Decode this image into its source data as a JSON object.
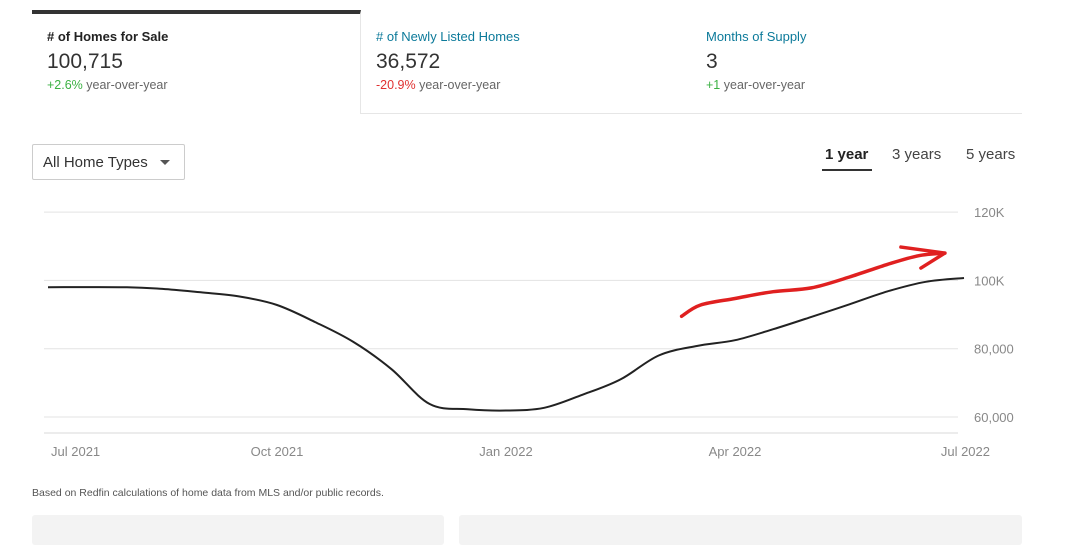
{
  "metrics": [
    {
      "title": "# of Homes for Sale",
      "value": "100,715",
      "change": "+2.6%",
      "change_text": " year-over-year"
    },
    {
      "title": "# of Newly Listed Homes",
      "value": "36,572",
      "change": "-20.9%",
      "change_text": " year-over-year"
    },
    {
      "title": "Months of Supply",
      "value": "3",
      "change": "+1",
      "change_text": " year-over-year"
    }
  ],
  "colors": {
    "up": "#3bb143",
    "down": "#e03131",
    "link": "#0c7a9a",
    "annotation": "#e02020"
  },
  "filter": {
    "selected": "All Home Types"
  },
  "ranges": [
    {
      "label": "1 year",
      "selected": true
    },
    {
      "label": "3 years",
      "selected": false
    },
    {
      "label": "5 years",
      "selected": false
    }
  ],
  "chart_data": {
    "type": "line",
    "title": "",
    "xlabel": "",
    "ylabel": "",
    "x_ticks": [
      "Jul 2021",
      "Oct 2021",
      "Jan 2022",
      "Apr 2022",
      "Jul 2022"
    ],
    "x_tick_positions": [
      0,
      3,
      6,
      9,
      12
    ],
    "y_ticks": [
      60000,
      80000,
      100000,
      120000
    ],
    "y_tick_labels": [
      "60,000",
      "80,000",
      "100K",
      "120K"
    ],
    "ylim": [
      48000,
      125000
    ],
    "xlim": [
      0,
      12
    ],
    "grid": true,
    "series": [
      {
        "color": "#222222",
        "points": [
          [
            0,
            98000
          ],
          [
            1,
            98000
          ],
          [
            1.5,
            97500
          ],
          [
            2,
            96500
          ],
          [
            2.5,
            95300
          ],
          [
            3,
            92800
          ],
          [
            3.5,
            87800
          ],
          [
            4,
            82000
          ],
          [
            4.5,
            74000
          ],
          [
            5,
            63800
          ],
          [
            5.5,
            62300
          ],
          [
            6,
            61900
          ],
          [
            6.5,
            62700
          ],
          [
            7,
            66500
          ],
          [
            7.5,
            71000
          ],
          [
            8,
            78000
          ],
          [
            8.5,
            80800
          ],
          [
            9,
            82500
          ],
          [
            9.5,
            85700
          ],
          [
            10,
            89300
          ],
          [
            10.5,
            93000
          ],
          [
            11,
            96800
          ],
          [
            11.5,
            99600
          ],
          [
            12,
            100700
          ]
        ]
      }
    ],
    "annotation": {
      "type": "arrow",
      "color": "#e02020",
      "points": [
        [
          8.3,
          89500
        ],
        [
          8.55,
          92800
        ],
        [
          9,
          94700
        ],
        [
          9.5,
          96700
        ],
        [
          10,
          97800
        ],
        [
          10.5,
          101000
        ],
        [
          11,
          104700
        ],
        [
          11.4,
          107200
        ],
        [
          11.75,
          108000
        ]
      ]
    }
  },
  "footnote": "Based on Redfin calculations of home data from MLS and/or public records."
}
